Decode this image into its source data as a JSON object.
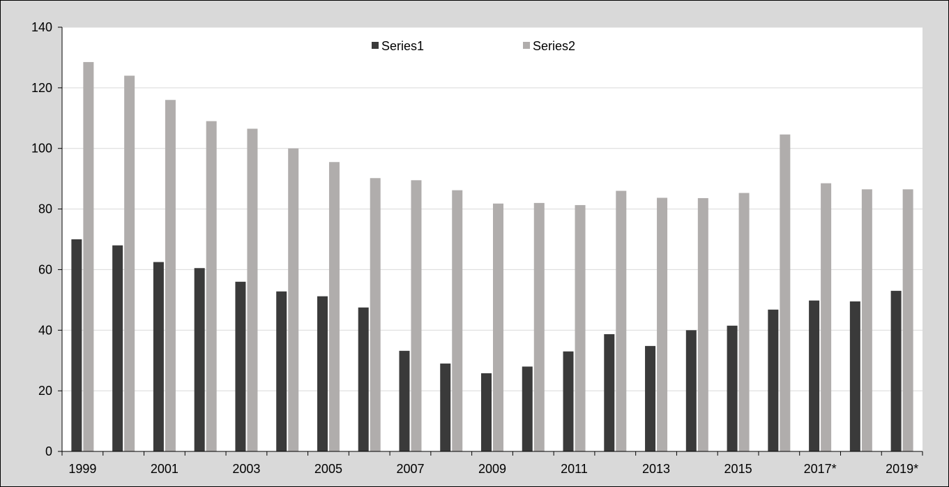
{
  "chart_data": {
    "type": "bar",
    "title": "",
    "xlabel": "",
    "ylabel": "",
    "ylim": [
      0,
      140
    ],
    "yticks": [
      0,
      20,
      40,
      60,
      80,
      100,
      120,
      140
    ],
    "grid": true,
    "legend_position": "top-center",
    "categories": [
      "1999",
      "2000",
      "2001",
      "2002",
      "2003",
      "2004",
      "2005",
      "2006",
      "2007",
      "2008",
      "2009",
      "2010",
      "2011",
      "2012",
      "2013",
      "2014",
      "2015",
      "2016",
      "2017*",
      "2018",
      "2019*"
    ],
    "x_tick_labels": [
      "1999",
      "2001",
      "2003",
      "2005",
      "2007",
      "2009",
      "2011",
      "2013",
      "2015",
      "2017*",
      "2019*"
    ],
    "series": [
      {
        "name": "Series1",
        "color": "#3a3a3a",
        "values": [
          70,
          68,
          62.5,
          60.5,
          56,
          52.8,
          51.2,
          47.5,
          33.2,
          29,
          25.8,
          28,
          33,
          38.7,
          34.8,
          40,
          41.5,
          46.8,
          49.8,
          49.5,
          53
        ]
      },
      {
        "name": "Series2",
        "color": "#b0adac",
        "values": [
          128.5,
          124,
          116,
          109,
          106.5,
          100,
          95.5,
          90.2,
          89.5,
          86.2,
          81.8,
          82,
          81.3,
          86,
          83.7,
          83.6,
          85.3,
          104.6,
          88.5,
          86.5,
          86.5
        ]
      }
    ]
  }
}
